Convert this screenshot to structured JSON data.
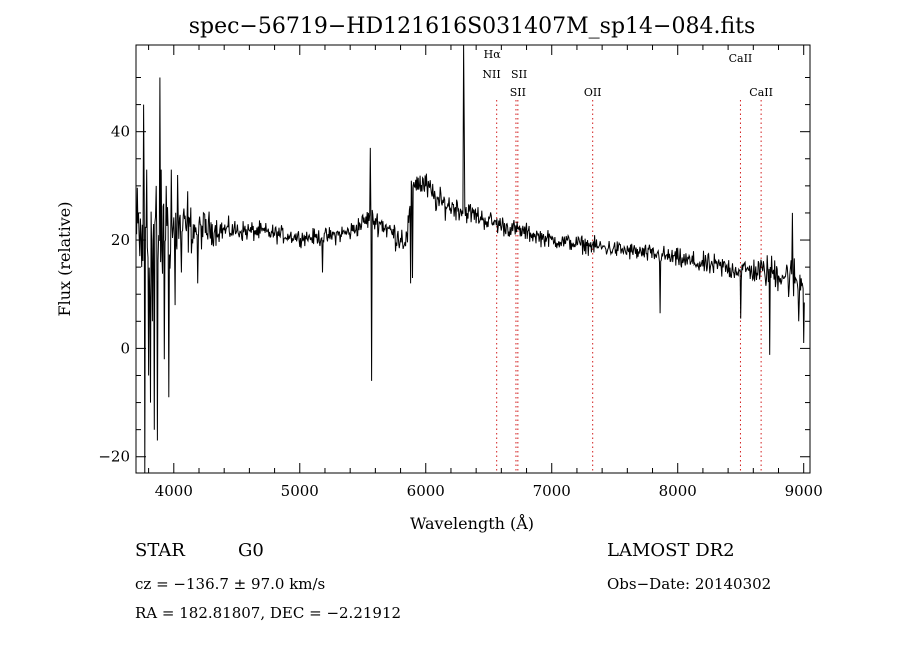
{
  "chart_data": {
    "type": "line",
    "title": "spec−56719−HD121616S031407M_sp14−084.fits",
    "xlabel": "Wavelength (Å)",
    "ylabel": "Flux (relative)",
    "xlim": [
      3700,
      9050
    ],
    "ylim": [
      -23,
      56
    ],
    "xticks": [
      {
        "value": 4000,
        "label": "4000"
      },
      {
        "value": 5000,
        "label": "5000"
      },
      {
        "value": 6000,
        "label": "6000"
      },
      {
        "value": 7000,
        "label": "7000"
      },
      {
        "value": 8000,
        "label": "8000"
      },
      {
        "value": 9000,
        "label": "9000"
      }
    ],
    "yticks": [
      {
        "value": -20,
        "label": "−20"
      },
      {
        "value": 0,
        "label": "0"
      },
      {
        "value": 20,
        "label": "20"
      },
      {
        "value": 40,
        "label": "40"
      }
    ],
    "continuum": [
      [
        3700,
        20
      ],
      [
        3900,
        21
      ],
      [
        4000,
        22
      ],
      [
        4300,
        22
      ],
      [
        4700,
        21.5
      ],
      [
        5000,
        20.5
      ],
      [
        5200,
        20.5
      ],
      [
        5400,
        21.5
      ],
      [
        5550,
        24
      ],
      [
        5650,
        23
      ],
      [
        5750,
        21
      ],
      [
        5850,
        20
      ],
      [
        5900,
        31
      ],
      [
        6000,
        30
      ],
      [
        6100,
        27
      ],
      [
        6300,
        25.5
      ],
      [
        6500,
        23.5
      ],
      [
        6700,
        22
      ],
      [
        7000,
        20
      ],
      [
        7300,
        19
      ],
      [
        7600,
        18
      ],
      [
        7900,
        17
      ],
      [
        8200,
        15.5
      ],
      [
        8500,
        14.5
      ],
      [
        8800,
        14
      ],
      [
        9000,
        12
      ]
    ],
    "noise": [
      [
        3700,
        12
      ],
      [
        3850,
        14
      ],
      [
        3950,
        9
      ],
      [
        4100,
        5
      ],
      [
        4400,
        2.2
      ],
      [
        5000,
        1.5
      ],
      [
        5500,
        2
      ],
      [
        5900,
        3
      ],
      [
        6300,
        2.2
      ],
      [
        7000,
        1.6
      ],
      [
        7800,
        1.8
      ],
      [
        8600,
        2.5
      ],
      [
        9000,
        5
      ]
    ],
    "spikes": [
      {
        "x": 3720,
        "y": 25
      },
      {
        "x": 3745,
        "y": 15
      },
      {
        "x": 3760,
        "y": 45
      },
      {
        "x": 3770,
        "y": -23
      },
      {
        "x": 3785,
        "y": 33
      },
      {
        "x": 3800,
        "y": -5
      },
      {
        "x": 3815,
        "y": -10
      },
      {
        "x": 3830,
        "y": 5
      },
      {
        "x": 3845,
        "y": -15
      },
      {
        "x": 3860,
        "y": 30
      },
      {
        "x": 3870,
        "y": -17
      },
      {
        "x": 3890,
        "y": 50
      },
      {
        "x": 3905,
        "y": 18
      },
      {
        "x": 3925,
        "y": -2
      },
      {
        "x": 3940,
        "y": 30
      },
      {
        "x": 3960,
        "y": -9
      },
      {
        "x": 3980,
        "y": 33
      },
      {
        "x": 4010,
        "y": 8
      },
      {
        "x": 4030,
        "y": 32
      },
      {
        "x": 4060,
        "y": 14
      },
      {
        "x": 4110,
        "y": 29
      },
      {
        "x": 4190,
        "y": 12
      },
      {
        "x": 5180,
        "y": 14
      },
      {
        "x": 5560,
        "y": 37
      },
      {
        "x": 5570,
        "y": -6
      },
      {
        "x": 5880,
        "y": 12
      },
      {
        "x": 5895,
        "y": 13
      },
      {
        "x": 6300,
        "y": 56
      },
      {
        "x": 6305,
        "y": 42
      },
      {
        "x": 7860,
        "y": 6.5
      },
      {
        "x": 8500,
        "y": 5.5
      },
      {
        "x": 8730,
        "y": -1.2
      },
      {
        "x": 8910,
        "y": 25
      },
      {
        "x": 8960,
        "y": 5
      },
      {
        "x": 9000,
        "y": 1
      }
    ],
    "lines": [
      {
        "x": 6563,
        "labels": [
          "Hα",
          "NII"
        ]
      },
      {
        "x": 6716,
        "labels": [
          "SII"
        ]
      },
      {
        "x": 6731,
        "labels": [
          "SII"
        ]
      },
      {
        "x": 7325,
        "labels": [
          "OII"
        ]
      },
      {
        "x": 8498,
        "labels": [
          "CaII"
        ]
      },
      {
        "x": 8662,
        "labels": [
          "CaII"
        ]
      }
    ],
    "line_color": "#d21e1e",
    "grid": false,
    "legend": "none"
  },
  "info": {
    "object_class": "STAR",
    "subclass": "G0",
    "survey": "LAMOST DR2",
    "redshift": "cz = −136.7 ± 97.0 km/s",
    "obs_date": "Obs−Date: 20140302",
    "coords": "RA = 182.81807, DEC =  −2.21912"
  }
}
